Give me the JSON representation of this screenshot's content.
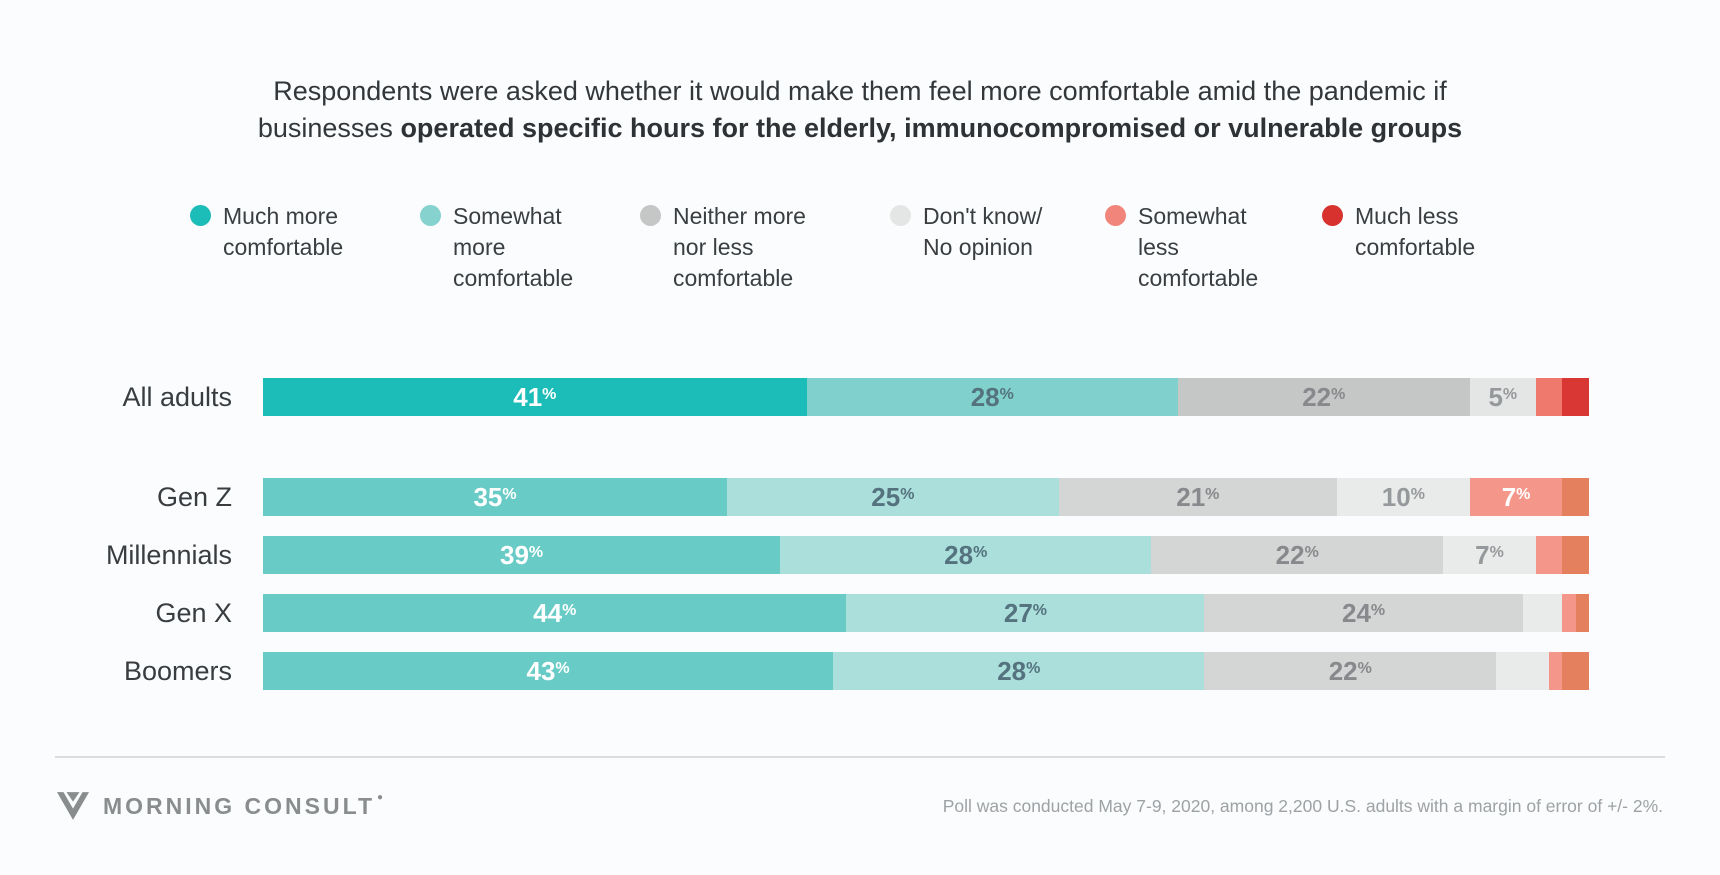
{
  "title": {
    "line1": "Respondents were asked whether it would make them feel more comfortable amid the pandemic if",
    "line2_prefix": "businesses ",
    "line2_bold": "operated specific hours for the elderly, immunocompromised or vulnerable groups"
  },
  "legend": {
    "items": [
      {
        "label": "Much more\ncomfortable",
        "color": "#1CBCB8"
      },
      {
        "label": "Somewhat\nmore\ncomfortable",
        "color": "#85D2CF"
      },
      {
        "label": "Neither more\nnor less\ncomfortable",
        "color": "#C5C6C6"
      },
      {
        "label": "Don't know/\nNo opinion",
        "color": "#E4E5E5"
      },
      {
        "label": "Somewhat\nless\ncomfortable",
        "color": "#F1857B"
      },
      {
        "label": "Much less\ncomfortable",
        "color": "#D8322F"
      }
    ]
  },
  "chart_data": {
    "type": "bar",
    "stacked": true,
    "orientation": "horizontal",
    "unit": "%",
    "xlim": [
      0,
      100
    ],
    "grid": false,
    "categories": [
      "All adults",
      "Gen Z",
      "Millennials",
      "Gen X",
      "Boomers"
    ],
    "series": [
      {
        "name": "Much more comfortable",
        "values": [
          41,
          35,
          39,
          44,
          43
        ]
      },
      {
        "name": "Somewhat more comfortable",
        "values": [
          28,
          25,
          28,
          27,
          28
        ]
      },
      {
        "name": "Neither more nor less comfortable",
        "values": [
          22,
          21,
          22,
          24,
          22
        ]
      },
      {
        "name": "Don't know/No opinion",
        "values": [
          5,
          10,
          7,
          3,
          4
        ]
      },
      {
        "name": "Somewhat less comfortable",
        "values": [
          2,
          7,
          2,
          1,
          1
        ]
      },
      {
        "name": "Much less comfortable",
        "values": [
          2,
          2,
          2,
          1,
          2
        ]
      }
    ],
    "label_min_value": 5
  },
  "styles": {
    "palette_all_adults": [
      "#1CBCB8",
      "#80D1CE",
      "#C5C6C6",
      "#E4E5E5",
      "#F0796D",
      "#D93734"
    ],
    "palette_generations": [
      "#68CBC5",
      "#ABDFDB",
      "#D4D5D5",
      "#E9EAEA",
      "#F4968A",
      "#E5805F"
    ],
    "label_colors": [
      "#FFFFFF",
      "#54737F",
      "#87898C",
      "#96999B",
      "#FFFFFF",
      "#FFFFFF"
    ],
    "background": "#FAFCFD"
  },
  "footer": {
    "logo_text": "MORNING CONSULT",
    "trademark_dot": "●",
    "note": "Poll was conducted May 7-9, 2020, among 2,200 U.S. adults with a margin of error of +/- 2%."
  }
}
